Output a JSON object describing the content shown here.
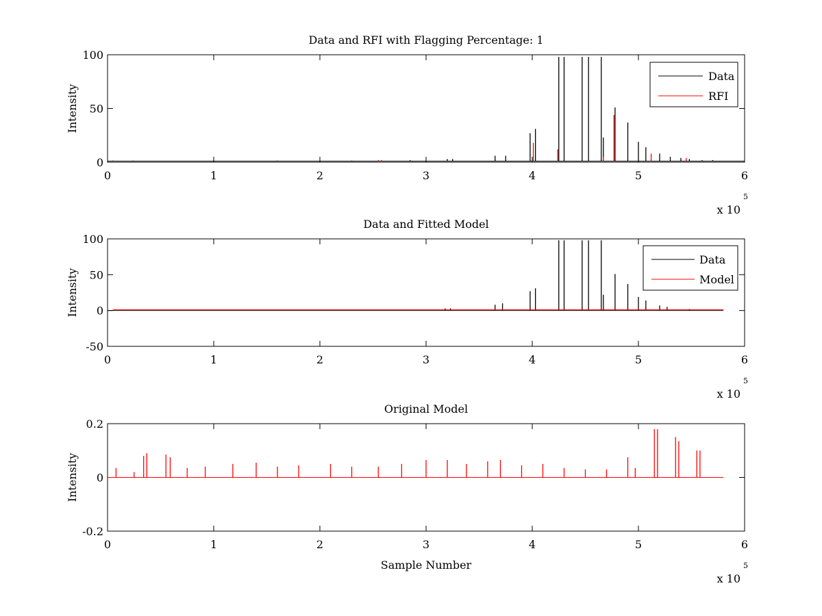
{
  "chart_data": [
    {
      "type": "line",
      "title": "Data and RFI with Flagging Percentage: 1",
      "xlabel": "",
      "ylabel": "Intensity",
      "xlim": [
        0,
        600000
      ],
      "ylim": [
        0,
        100
      ],
      "xticks": [
        "0",
        "1",
        "2",
        "3",
        "4",
        "5",
        "6"
      ],
      "yticks": [
        "0",
        "50",
        "100"
      ],
      "x_multiplier": {
        "base": "x 10",
        "exponent": "5"
      },
      "grid": false,
      "legend": "top-right",
      "baseline": 1,
      "series": [
        {
          "name": "Data",
          "color": "#000000",
          "x": [
            5000,
            24000,
            100000,
            160000,
            230000,
            285000,
            320000,
            325000,
            365000,
            375000,
            398000,
            403000,
            425000,
            430000,
            447000,
            453000,
            465000,
            467000,
            478000,
            490000,
            500000,
            507000,
            520000,
            530000,
            540000,
            548000,
            560000,
            570000
          ],
          "y": [
            1.5,
            1.5,
            1.5,
            1.5,
            1.5,
            2,
            3,
            3,
            6,
            6,
            27,
            31,
            98,
            98,
            98,
            98,
            98,
            23,
            51,
            37,
            19,
            14,
            8,
            5,
            4,
            3,
            2,
            2
          ]
        },
        {
          "name": "RFI",
          "color": "#ff0000",
          "x": [
            255000,
            258000,
            401000,
            424000,
            467000,
            477000,
            512000,
            545000
          ],
          "y": [
            2,
            2,
            18,
            12,
            5,
            44,
            8,
            4
          ]
        }
      ]
    },
    {
      "type": "line",
      "title": "Data and Fitted Model",
      "xlabel": "",
      "ylabel": "Intensity",
      "xlim": [
        0,
        600000
      ],
      "ylim": [
        -50,
        100
      ],
      "xticks": [
        "0",
        "1",
        "2",
        "3",
        "4",
        "5",
        "6"
      ],
      "yticks": [
        "-50",
        "0",
        "50",
        "100"
      ],
      "x_multiplier": {
        "base": "x 10",
        "exponent": "5"
      },
      "grid": false,
      "legend": "top-right",
      "baseline": 0,
      "series": [
        {
          "name": "Data",
          "color": "#000000",
          "x": [
            318000,
            323000,
            365000,
            372000,
            398000,
            403000,
            425000,
            430000,
            447000,
            453000,
            465000,
            467000,
            478000,
            490000,
            500000,
            507000,
            520000,
            527000,
            548000
          ],
          "y": [
            3,
            3,
            8,
            10,
            27,
            31,
            98,
            98,
            98,
            98,
            98,
            22,
            51,
            37,
            19,
            14,
            7,
            5,
            2
          ],
          "extent": [
            0,
            580000
          ]
        },
        {
          "name": "Model",
          "color": "#ff0000",
          "x": [
            5000,
            580000
          ],
          "y": [
            1,
            1
          ]
        }
      ]
    },
    {
      "type": "line",
      "title": "Original Model",
      "xlabel": "Sample Number",
      "ylabel": "Intensity",
      "xlim": [
        0,
        600000
      ],
      "ylim": [
        -0.2,
        0.2
      ],
      "xticks": [
        "0",
        "1",
        "2",
        "3",
        "4",
        "5",
        "6"
      ],
      "yticks": [
        "-0.2",
        "0",
        "0.2"
      ],
      "x_multiplier": {
        "base": "x 10",
        "exponent": "5"
      },
      "grid": false,
      "legend": "none",
      "baseline": 0,
      "series": [
        {
          "name": "",
          "color": "#ff0000",
          "x": [
            8000,
            25000,
            34000,
            37000,
            55000,
            59000,
            75000,
            92000,
            118000,
            140000,
            160000,
            180000,
            210000,
            230000,
            255000,
            277000,
            300000,
            320000,
            338000,
            358000,
            370000,
            390000,
            410000,
            430000,
            450000,
            470000,
            490000,
            497000,
            515000,
            518000,
            535000,
            538000,
            555000,
            558000
          ],
          "y": [
            0.035,
            0.02,
            0.08,
            0.09,
            0.085,
            0.075,
            0.035,
            0.04,
            0.05,
            0.055,
            0.04,
            0.045,
            0.05,
            0.04,
            0.04,
            0.05,
            0.065,
            0.065,
            0.05,
            0.06,
            0.065,
            0.045,
            0.05,
            0.035,
            0.03,
            0.03,
            0.075,
            0.035,
            0.18,
            0.18,
            0.15,
            0.135,
            0.1,
            0.1
          ],
          "extent": [
            0,
            580000
          ]
        }
      ]
    }
  ]
}
